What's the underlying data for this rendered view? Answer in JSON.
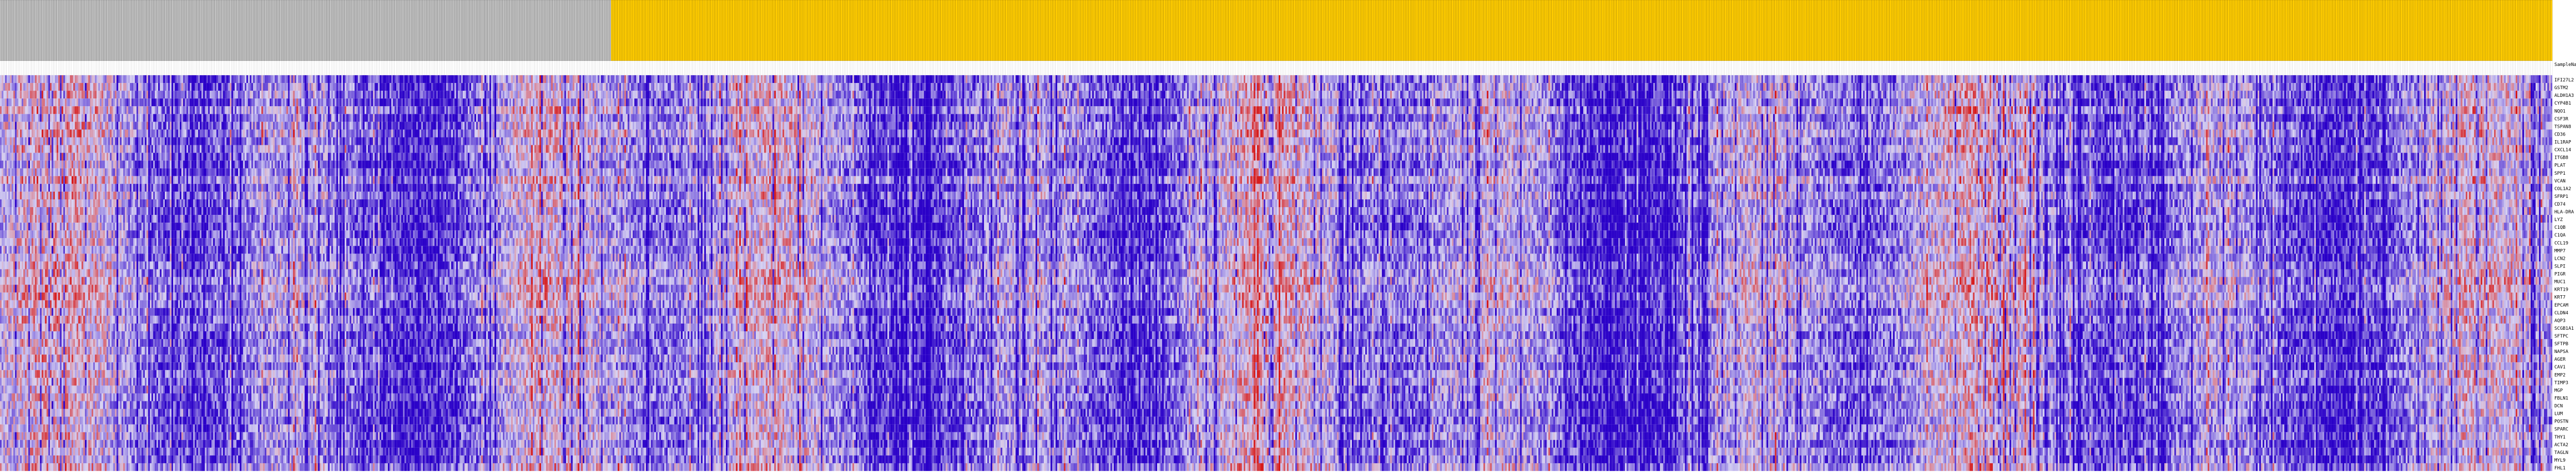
{
  "chart_data": {
    "type": "heatmap",
    "header_label": "SampleNam",
    "groups": [
      {
        "columns": 367,
        "color": "#c0c0c0"
      },
      {
        "columns": 1166,
        "color": "#ffcc00"
      }
    ],
    "rows": [
      "IFI27L2",
      "GSTM2",
      "ALDH1A3",
      "CYP4B1",
      "NQO1",
      "CSF3R",
      "TSPAN8",
      "CD36",
      "IL1RAP",
      "CXCL14",
      "ITGB8",
      "PLAT",
      "SPP1",
      "VCAN",
      "COL1A2",
      "SFRP1",
      "CD74",
      "HLA-DRA",
      "LYZ",
      "C1QB",
      "C1QA",
      "CCL19",
      "MMP7",
      "LCN2",
      "SLPI",
      "PIGR",
      "MUC1",
      "KRT19",
      "KRT7",
      "EPCAM",
      "CLDN4",
      "AQP3",
      "SCGB1A1",
      "SFTPC",
      "SFTPB",
      "NAPSA",
      "AGER",
      "CAV1",
      "EMP2",
      "TIMP3",
      "MGP",
      "FBLN1",
      "DCN",
      "LUM",
      "POSTN",
      "SPARC",
      "THY1",
      "ACTA2",
      "TAGLN",
      "MYL9",
      "FHL1"
    ],
    "color_scale": {
      "low": "#2a00c8",
      "mid": "#d7d2f2",
      "high": "#d61818"
    },
    "series": []
  }
}
